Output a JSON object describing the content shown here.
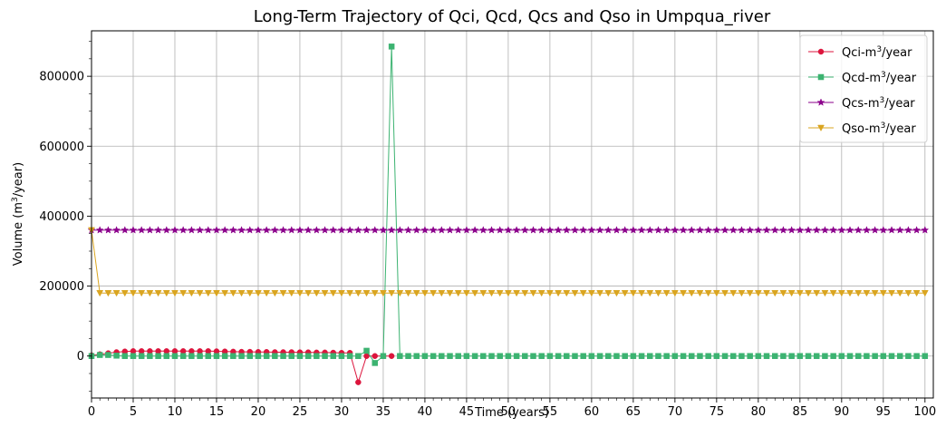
{
  "chart_data": {
    "type": "line",
    "title": "Long-Term Trajectory of Qci, Qcd, Qcs and Qso in Umpqua_river",
    "xlabel": "Time (years)",
    "ylabel": "Volume (m³/year)",
    "xlim": [
      0,
      101
    ],
    "ylim": [
      -120000,
      930000
    ],
    "grid": true,
    "legend_position": "top-right",
    "x_ticks": [
      0,
      1,
      2,
      3,
      4,
      5,
      6,
      7,
      8,
      9,
      10,
      11,
      12,
      13,
      14,
      15,
      16,
      17,
      18,
      19,
      20,
      21,
      22,
      23,
      24,
      25,
      26,
      27,
      28,
      29,
      30,
      31,
      32,
      33,
      34,
      35,
      36,
      37,
      38,
      39,
      40,
      41,
      42,
      43,
      44,
      45,
      46,
      47,
      48,
      49,
      50,
      51,
      52,
      53,
      54,
      55,
      56,
      57,
      58,
      59,
      60,
      61,
      62,
      63,
      64,
      65,
      66,
      67,
      68,
      69,
      70,
      71,
      72,
      73,
      74,
      75,
      76,
      77,
      78,
      79,
      80,
      81,
      82,
      83,
      84,
      85,
      86,
      87,
      88,
      89,
      90,
      91,
      92,
      93,
      94,
      95,
      96,
      97,
      98,
      99,
      100
    ],
    "x_tick_labels": [
      "0",
      "",
      "",
      "",
      "",
      "5",
      "",
      "",
      "",
      "",
      "10",
      "",
      "",
      "",
      "",
      "15",
      "",
      "",
      "",
      "",
      "20",
      "",
      "",
      "",
      "",
      "25",
      "",
      "",
      "",
      "",
      "30",
      "",
      "",
      "",
      "",
      "35",
      "",
      "",
      "",
      "",
      "40",
      "",
      "",
      "",
      "",
      "45",
      "",
      "",
      "",
      "",
      "50",
      "",
      "",
      "",
      "",
      "55",
      "",
      "",
      "",
      "",
      "60",
      "",
      "",
      "",
      "",
      "65",
      "",
      "",
      "",
      "",
      "70",
      "",
      "",
      "",
      "",
      "75",
      "",
      "",
      "",
      "",
      "80",
      "",
      "",
      "",
      "",
      "85",
      "",
      "",
      "",
      "",
      "90",
      "",
      "",
      "",
      "",
      "95",
      "",
      "",
      "",
      "",
      "100"
    ],
    "y_ticks": [
      0,
      200000,
      400000,
      600000,
      800000
    ],
    "y_tick_labels": [
      "0",
      "200000",
      "400000",
      "600000",
      "800000"
    ],
    "y_minor_ticks": [
      -100000,
      -50000,
      50000,
      100000,
      150000,
      250000,
      300000,
      350000,
      450000,
      500000,
      550000,
      650000,
      700000,
      750000,
      850000,
      900000
    ],
    "series": [
      {
        "name": "Qci-m3/year",
        "legend_prefix": "Qci-m",
        "legend_sup": "3",
        "legend_suffix": "/year",
        "color": "#dc143c",
        "marker": "circle",
        "x": [
          0,
          1,
          2,
          3,
          4,
          5,
          6,
          7,
          8,
          9,
          10,
          11,
          12,
          13,
          14,
          15,
          16,
          17,
          18,
          19,
          20,
          21,
          22,
          23,
          24,
          25,
          26,
          27,
          28,
          29,
          30,
          31,
          32,
          33,
          34,
          35,
          36
        ],
        "values": [
          2000,
          5000,
          8000,
          11000,
          13000,
          14000,
          14000,
          14000,
          14000,
          14000,
          14000,
          14000,
          14000,
          14000,
          14000,
          13500,
          13000,
          12500,
          12000,
          12000,
          11500,
          11500,
          11000,
          11000,
          11000,
          10500,
          10500,
          10000,
          10000,
          9500,
          9000,
          9000,
          -75000,
          0,
          0,
          0,
          0
        ]
      },
      {
        "name": "Qcd-m3/year",
        "legend_prefix": "Qcd-m",
        "legend_sup": "3",
        "legend_suffix": "/year",
        "color": "#3cb371",
        "marker": "square",
        "x": [
          0,
          1,
          2,
          3,
          4,
          5,
          6,
          7,
          8,
          9,
          10,
          11,
          12,
          13,
          14,
          15,
          16,
          17,
          18,
          19,
          20,
          21,
          22,
          23,
          24,
          25,
          26,
          27,
          28,
          29,
          30,
          31,
          32,
          33,
          34,
          35,
          36,
          37,
          38,
          39,
          40,
          41,
          42,
          43,
          44,
          45,
          46,
          47,
          48,
          49,
          50,
          51,
          52,
          53,
          54,
          55,
          56,
          57,
          58,
          59,
          60,
          61,
          62,
          63,
          64,
          65,
          66,
          67,
          68,
          69,
          70,
          71,
          72,
          73,
          74,
          75,
          76,
          77,
          78,
          79,
          80,
          81,
          82,
          83,
          84,
          85,
          86,
          87,
          88,
          89,
          90,
          91,
          92,
          93,
          94,
          95,
          96,
          97,
          98,
          99,
          100
        ],
        "values": [
          0,
          3000,
          3000,
          1000,
          0,
          0,
          0,
          0,
          0,
          0,
          0,
          0,
          0,
          0,
          0,
          0,
          0,
          0,
          0,
          0,
          0,
          0,
          0,
          0,
          0,
          0,
          0,
          0,
          0,
          0,
          0,
          0,
          0,
          15000,
          -20000,
          0,
          885000,
          0,
          0,
          0,
          0,
          0,
          0,
          0,
          0,
          0,
          0,
          0,
          0,
          0,
          0,
          0,
          0,
          0,
          0,
          0,
          0,
          0,
          0,
          0,
          0,
          0,
          0,
          0,
          0,
          0,
          0,
          0,
          0,
          0,
          0,
          0,
          0,
          0,
          0,
          0,
          0,
          0,
          0,
          0,
          0,
          0,
          0,
          0,
          0,
          0,
          0,
          0,
          0,
          0,
          0,
          0,
          0,
          0,
          0,
          0,
          0,
          0,
          0,
          0,
          0
        ]
      },
      {
        "name": "Qcs-m3/year",
        "legend_prefix": "Qcs-m",
        "legend_sup": "3",
        "legend_suffix": "/year",
        "color": "#8b008b",
        "marker": "star",
        "x": [
          0,
          1,
          2,
          3,
          4,
          5,
          6,
          7,
          8,
          9,
          10,
          11,
          12,
          13,
          14,
          15,
          16,
          17,
          18,
          19,
          20,
          21,
          22,
          23,
          24,
          25,
          26,
          27,
          28,
          29,
          30,
          31,
          32,
          33,
          34,
          35,
          36,
          37,
          38,
          39,
          40,
          41,
          42,
          43,
          44,
          45,
          46,
          47,
          48,
          49,
          50,
          51,
          52,
          53,
          54,
          55,
          56,
          57,
          58,
          59,
          60,
          61,
          62,
          63,
          64,
          65,
          66,
          67,
          68,
          69,
          70,
          71,
          72,
          73,
          74,
          75,
          76,
          77,
          78,
          79,
          80,
          81,
          82,
          83,
          84,
          85,
          86,
          87,
          88,
          89,
          90,
          91,
          92,
          93,
          94,
          95,
          96,
          97,
          98,
          99,
          100
        ],
        "values": [
          360000,
          360000,
          360000,
          360000,
          360000,
          360000,
          360000,
          360000,
          360000,
          360000,
          360000,
          360000,
          360000,
          360000,
          360000,
          360000,
          360000,
          360000,
          360000,
          360000,
          360000,
          360000,
          360000,
          360000,
          360000,
          360000,
          360000,
          360000,
          360000,
          360000,
          360000,
          360000,
          360000,
          360000,
          360000,
          360000,
          360000,
          360000,
          360000,
          360000,
          360000,
          360000,
          360000,
          360000,
          360000,
          360000,
          360000,
          360000,
          360000,
          360000,
          360000,
          360000,
          360000,
          360000,
          360000,
          360000,
          360000,
          360000,
          360000,
          360000,
          360000,
          360000,
          360000,
          360000,
          360000,
          360000,
          360000,
          360000,
          360000,
          360000,
          360000,
          360000,
          360000,
          360000,
          360000,
          360000,
          360000,
          360000,
          360000,
          360000,
          360000,
          360000,
          360000,
          360000,
          360000,
          360000,
          360000,
          360000,
          360000,
          360000,
          360000,
          360000,
          360000,
          360000,
          360000,
          360000,
          360000,
          360000,
          360000,
          360000,
          360000
        ]
      },
      {
        "name": "Qso-m3/year",
        "legend_prefix": "Qso-m",
        "legend_sup": "3",
        "legend_suffix": "/year",
        "color": "#daa520",
        "marker": "triangle-down",
        "x": [
          0,
          1,
          2,
          3,
          4,
          5,
          6,
          7,
          8,
          9,
          10,
          11,
          12,
          13,
          14,
          15,
          16,
          17,
          18,
          19,
          20,
          21,
          22,
          23,
          24,
          25,
          26,
          27,
          28,
          29,
          30,
          31,
          32,
          33,
          34,
          35,
          36,
          37,
          38,
          39,
          40,
          41,
          42,
          43,
          44,
          45,
          46,
          47,
          48,
          49,
          50,
          51,
          52,
          53,
          54,
          55,
          56,
          57,
          58,
          59,
          60,
          61,
          62,
          63,
          64,
          65,
          66,
          67,
          68,
          69,
          70,
          71,
          72,
          73,
          74,
          75,
          76,
          77,
          78,
          79,
          80,
          81,
          82,
          83,
          84,
          85,
          86,
          87,
          88,
          89,
          90,
          91,
          92,
          93,
          94,
          95,
          96,
          97,
          98,
          99,
          100
        ],
        "values": [
          360000,
          180000,
          180000,
          180000,
          180000,
          180000,
          180000,
          180000,
          180000,
          180000,
          180000,
          180000,
          180000,
          180000,
          180000,
          180000,
          180000,
          180000,
          180000,
          180000,
          180000,
          180000,
          180000,
          180000,
          180000,
          180000,
          180000,
          180000,
          180000,
          180000,
          180000,
          180000,
          180000,
          180000,
          180000,
          180000,
          180000,
          180000,
          180000,
          180000,
          180000,
          180000,
          180000,
          180000,
          180000,
          180000,
          180000,
          180000,
          180000,
          180000,
          180000,
          180000,
          180000,
          180000,
          180000,
          180000,
          180000,
          180000,
          180000,
          180000,
          180000,
          180000,
          180000,
          180000,
          180000,
          180000,
          180000,
          180000,
          180000,
          180000,
          180000,
          180000,
          180000,
          180000,
          180000,
          180000,
          180000,
          180000,
          180000,
          180000,
          180000,
          180000,
          180000,
          180000,
          180000,
          180000,
          180000,
          180000,
          180000,
          180000,
          180000,
          180000,
          180000,
          180000,
          180000,
          180000,
          180000,
          180000,
          180000,
          180000,
          180000
        ]
      }
    ]
  }
}
